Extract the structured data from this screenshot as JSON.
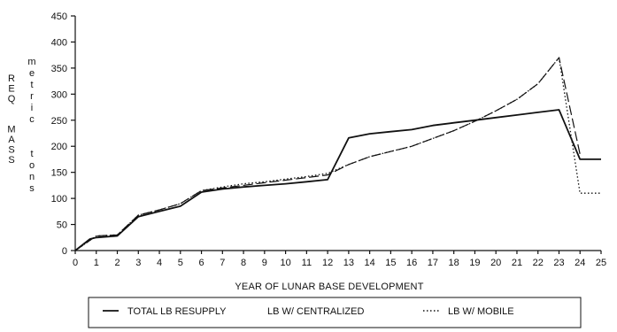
{
  "chart_data": {
    "type": "line",
    "xlabel": "YEAR OF LUNAR BASE DEVELOPMENT",
    "ylabel_left": [
      "R",
      "E",
      "Q",
      "",
      "",
      "M",
      "A",
      "S",
      "S"
    ],
    "ylabel_right": [
      "m",
      "e",
      "t",
      "r",
      "i",
      "c",
      "",
      "",
      "t",
      "o",
      "n",
      "s"
    ],
    "xlim": [
      0,
      25
    ],
    "ylim": [
      0,
      450
    ],
    "x_ticks": [
      "0",
      "1",
      "2",
      "3",
      "4",
      "5",
      "6",
      "7",
      "8",
      "9",
      "10",
      "11",
      "12",
      "13",
      "14",
      "15",
      "16",
      "17",
      "18",
      "19",
      "20",
      "21",
      "22",
      "23",
      "24",
      "25"
    ],
    "y_ticks": [
      "0",
      "50",
      "100",
      "150",
      "200",
      "250",
      "300",
      "350",
      "400",
      "450"
    ],
    "grid": false,
    "legend_position": "bottom",
    "series": [
      {
        "name": "TOTAL LB RESUPPLY",
        "style": "solid",
        "points": [
          [
            0,
            0
          ],
          [
            0.7,
            22
          ],
          [
            1,
            25
          ],
          [
            2,
            28
          ],
          [
            3,
            65
          ],
          [
            4,
            75
          ],
          [
            5,
            85
          ],
          [
            6,
            112
          ],
          [
            7,
            118
          ],
          [
            8,
            122
          ],
          [
            9,
            125
          ],
          [
            10,
            128
          ],
          [
            11,
            132
          ],
          [
            12,
            136
          ],
          [
            13,
            216
          ],
          [
            14,
            224
          ],
          [
            15,
            228
          ],
          [
            16,
            232
          ],
          [
            17,
            240
          ],
          [
            18,
            245
          ],
          [
            19,
            250
          ],
          [
            20,
            255
          ],
          [
            21,
            260
          ],
          [
            22,
            265
          ],
          [
            23,
            270
          ],
          [
            24,
            175
          ],
          [
            25,
            175
          ]
        ]
      },
      {
        "name": "LB W/ CENTRALIZED",
        "style": "dashed",
        "points": [
          [
            0,
            0
          ],
          [
            1,
            28
          ],
          [
            2,
            30
          ],
          [
            3,
            68
          ],
          [
            4,
            78
          ],
          [
            5,
            90
          ],
          [
            6,
            115
          ],
          [
            7,
            120
          ],
          [
            8,
            125
          ],
          [
            9,
            130
          ],
          [
            10,
            135
          ],
          [
            11,
            140
          ],
          [
            12,
            145
          ],
          [
            13,
            165
          ],
          [
            14,
            180
          ],
          [
            15,
            190
          ],
          [
            16,
            200
          ],
          [
            17,
            215
          ],
          [
            18,
            230
          ],
          [
            19,
            248
          ],
          [
            20,
            268
          ],
          [
            21,
            290
          ],
          [
            22,
            320
          ],
          [
            23,
            370
          ],
          [
            24,
            185
          ]
        ]
      },
      {
        "name": "LB W/ MOBILE",
        "style": "dotted",
        "points": [
          [
            0,
            0
          ],
          [
            1,
            28
          ],
          [
            2,
            30
          ],
          [
            3,
            68
          ],
          [
            4,
            78
          ],
          [
            5,
            90
          ],
          [
            6,
            115
          ],
          [
            7,
            122
          ],
          [
            8,
            128
          ],
          [
            9,
            132
          ],
          [
            10,
            137
          ],
          [
            11,
            142
          ],
          [
            12,
            148
          ],
          [
            13,
            165
          ],
          [
            14,
            180
          ],
          [
            15,
            190
          ],
          [
            16,
            200
          ],
          [
            17,
            215
          ],
          [
            18,
            230
          ],
          [
            19,
            248
          ],
          [
            20,
            268
          ],
          [
            21,
            290
          ],
          [
            22,
            320
          ],
          [
            23,
            370
          ],
          [
            24,
            110
          ],
          [
            25,
            110
          ]
        ]
      }
    ]
  }
}
